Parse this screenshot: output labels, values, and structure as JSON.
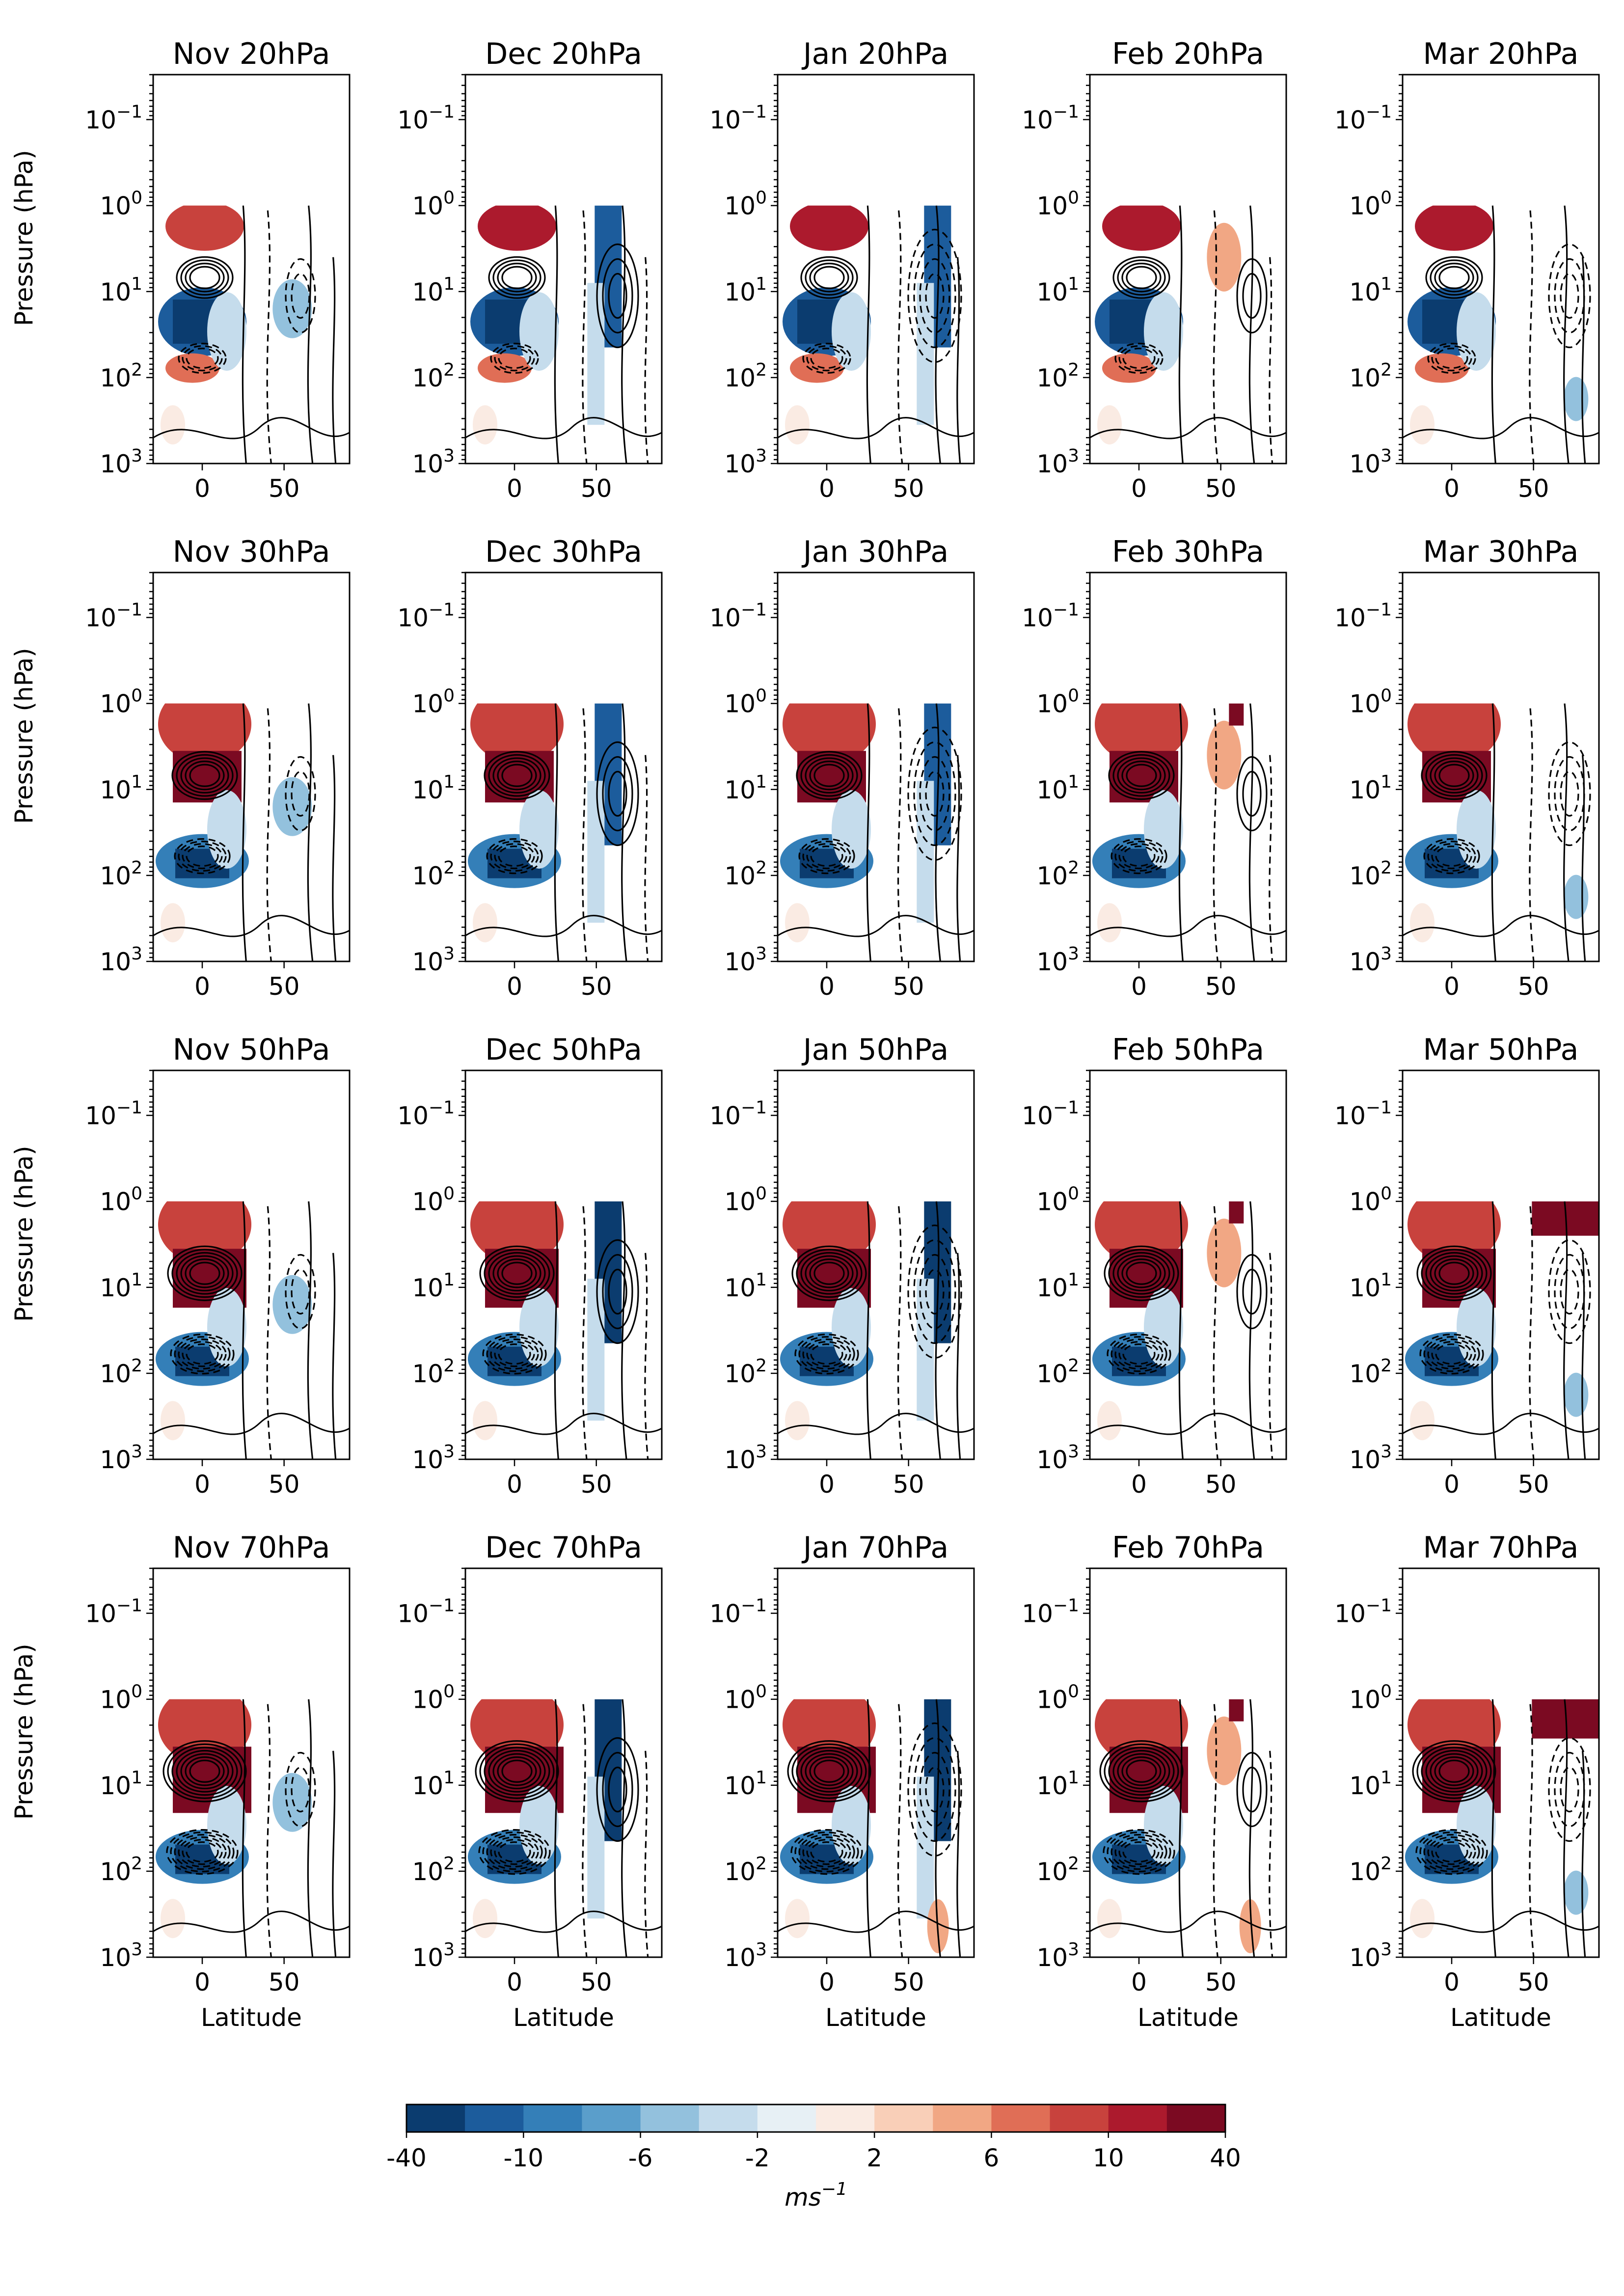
{
  "chart_data": {
    "type": "contour",
    "layout": {
      "rows": 4,
      "cols": 5
    },
    "x": {
      "label": "Latitude",
      "lim": [
        -30,
        90
      ],
      "ticks": [
        0,
        50
      ],
      "tick_labels": [
        "0",
        "50"
      ]
    },
    "y": {
      "label": "Pressure (hPa)",
      "scale": "log",
      "inverted": true,
      "lim": [
        1000,
        0.03
      ],
      "ticks": [
        0.1,
        1,
        10,
        100,
        1000
      ],
      "tick_labels": [
        [
          "10",
          "−1"
        ],
        [
          "10",
          "0"
        ],
        [
          "10",
          "1"
        ],
        [
          "10",
          "2"
        ],
        [
          "10",
          "3"
        ]
      ],
      "data_top": 1
    },
    "panels": [
      {
        "title": "Nov 20hPa"
      },
      {
        "title": "Dec 20hPa"
      },
      {
        "title": "Jan 20hPa"
      },
      {
        "title": "Feb 20hPa"
      },
      {
        "title": "Mar 20hPa"
      },
      {
        "title": "Nov 30hPa"
      },
      {
        "title": "Dec 30hPa"
      },
      {
        "title": "Jan 30hPa"
      },
      {
        "title": "Feb 30hPa"
      },
      {
        "title": "Mar 30hPa"
      },
      {
        "title": "Nov 50hPa"
      },
      {
        "title": "Dec 50hPa"
      },
      {
        "title": "Jan 50hPa"
      },
      {
        "title": "Feb 50hPa"
      },
      {
        "title": "Mar 50hPa"
      },
      {
        "title": "Nov 70hPa"
      },
      {
        "title": "Dec 70hPa"
      },
      {
        "title": "Jan 70hPa"
      },
      {
        "title": "Feb 70hPa"
      },
      {
        "title": "Mar 70hPa"
      }
    ],
    "colorbar": {
      "unit": [
        "ms",
        "−1"
      ],
      "colors": [
        "#0b3c6f",
        "#1c5c9c",
        "#347fb8",
        "#5a9ecb",
        "#93c1dd",
        "#c5dcec",
        "#e7f0f5",
        "#faebe3",
        "#f9cfb8",
        "#f1a784",
        "#e06e56",
        "#c8423d",
        "#ac1a2d",
        "#7b0a22"
      ],
      "tick_labels": [
        "-40",
        "-10",
        "-6",
        "-2",
        "2",
        "6",
        "10",
        "40"
      ]
    }
  }
}
